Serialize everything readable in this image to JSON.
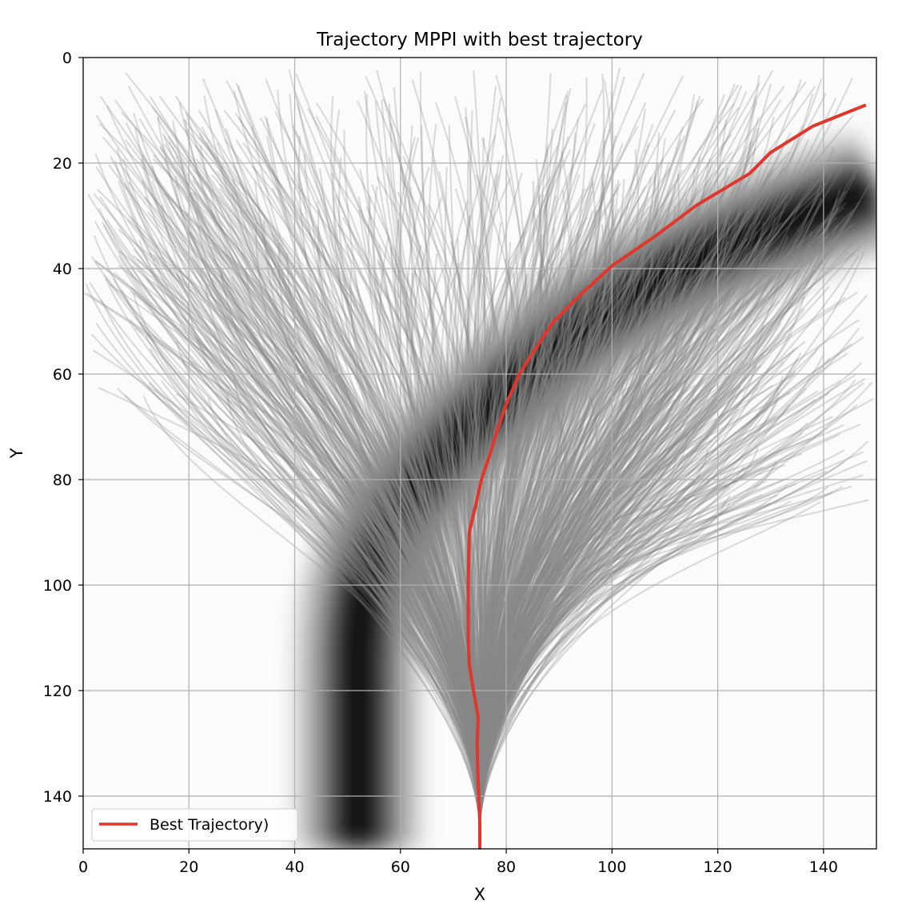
{
  "chart_data": {
    "type": "line",
    "title": "Trajectory MPPI with best trajectory",
    "xlabel": "X",
    "ylabel": "Y",
    "xlim": [
      0,
      150
    ],
    "ylim": [
      150,
      0
    ],
    "y_inverted": true,
    "xticks": [
      0,
      20,
      40,
      60,
      80,
      100,
      120,
      140
    ],
    "yticks": [
      0,
      20,
      40,
      60,
      80,
      100,
      120,
      140
    ],
    "grid": true,
    "legend": {
      "placement": "lower-left",
      "entries": [
        "Best Trajectory)"
      ]
    },
    "background": {
      "type": "heatmap",
      "colormap": "gray_r",
      "description_points": [
        [
          52,
          150
        ],
        [
          52,
          125
        ],
        [
          52,
          105
        ],
        [
          56,
          92
        ],
        [
          65,
          78
        ],
        [
          80,
          63
        ],
        [
          98,
          48
        ],
        [
          120,
          36
        ],
        [
          150,
          25
        ]
      ]
    },
    "sampled_trajectories": {
      "origin": [
        75,
        145
      ],
      "count": 1000,
      "color": "#888888"
    },
    "series": [
      {
        "name": "Best Trajectory)",
        "color": "#e0362b",
        "points": [
          [
            75,
            150
          ],
          [
            75,
            145
          ],
          [
            74.8,
            140
          ],
          [
            74.6,
            135
          ],
          [
            74.5,
            130
          ],
          [
            74.7,
            125
          ],
          [
            73.8,
            120
          ],
          [
            73.0,
            115
          ],
          [
            72.8,
            110
          ],
          [
            72.8,
            105
          ],
          [
            72.8,
            100
          ],
          [
            72.9,
            95
          ],
          [
            73.0,
            90
          ],
          [
            74.2,
            85
          ],
          [
            75.3,
            80
          ],
          [
            77,
            75
          ],
          [
            78.5,
            70
          ],
          [
            80.3,
            65
          ],
          [
            82.5,
            60
          ],
          [
            85,
            56
          ],
          [
            89,
            50
          ],
          [
            94,
            45
          ],
          [
            100,
            39.5
          ],
          [
            108,
            34
          ],
          [
            116,
            28
          ],
          [
            126,
            22
          ],
          [
            130,
            18
          ],
          [
            138,
            13
          ],
          [
            148,
            9
          ]
        ]
      }
    ]
  }
}
